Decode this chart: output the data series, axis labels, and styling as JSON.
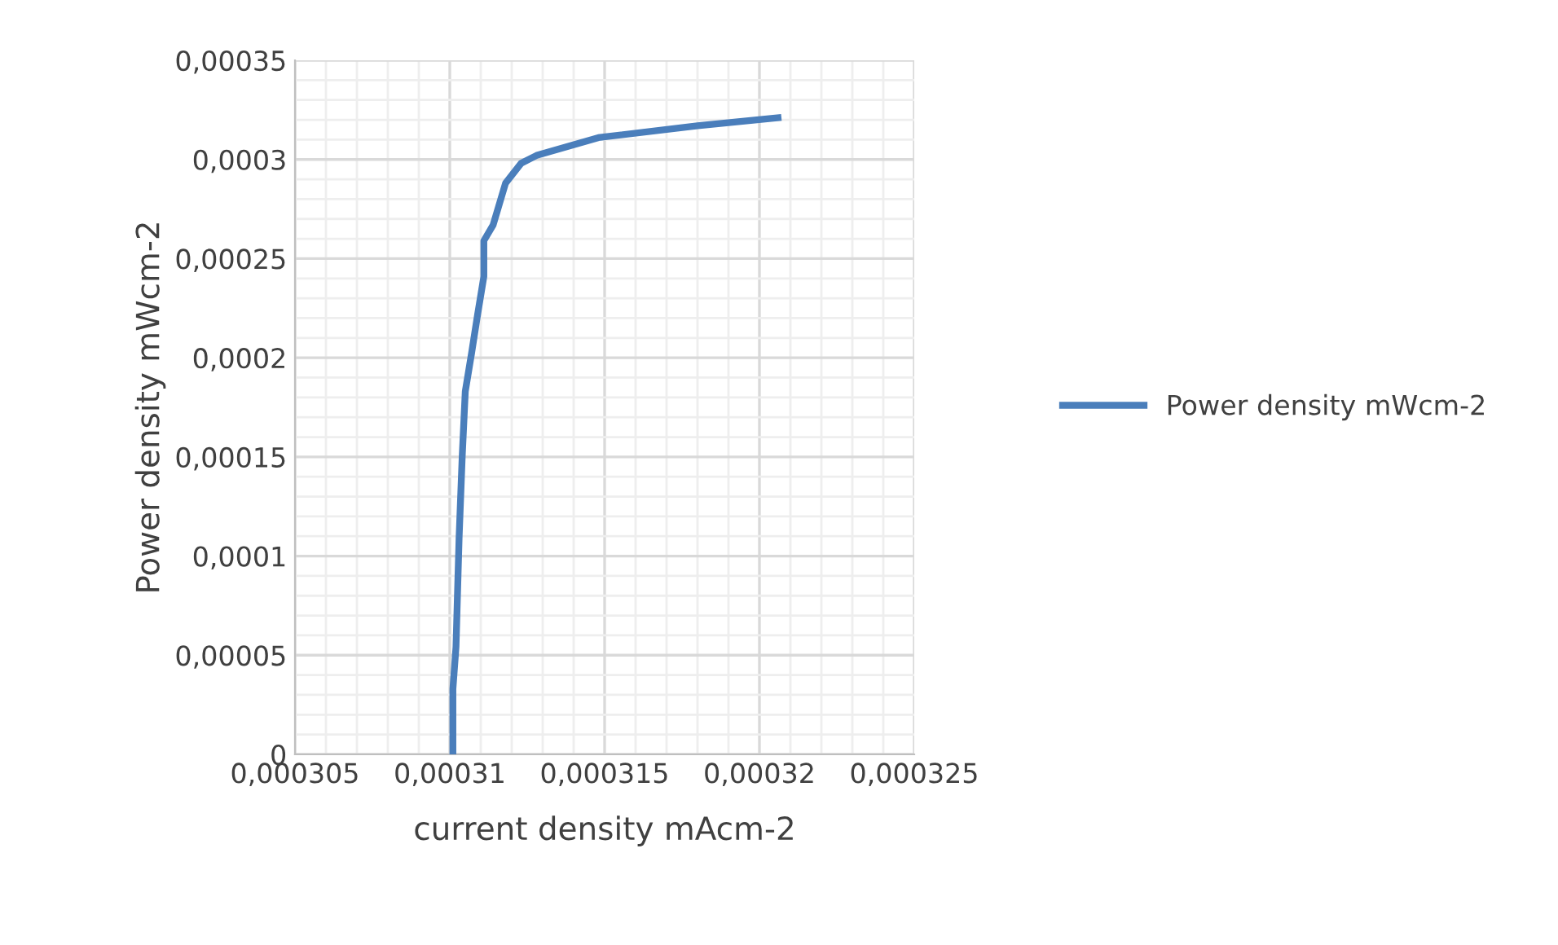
{
  "chart_data": {
    "type": "line",
    "xlabel": "current density mAcm-2",
    "ylabel": "Power density mWcm-2",
    "x": [
      0.0003101,
      0.0003101,
      0.0003102,
      0.0003103,
      0.0003104,
      0.0003105,
      0.0003107,
      0.0003109,
      0.0003111,
      0.0003111,
      0.0003114,
      0.0003118,
      0.0003123,
      0.0003128,
      0.0003148,
      0.000318,
      0.0003206
    ],
    "series": [
      {
        "name": "Power density mWcm-2",
        "color": "#4a7ebb",
        "values": [
          0,
          3.29e-05,
          5.42e-05,
          0.000109,
          0.00015,
          0.000183,
          0.000202,
          0.000222,
          0.000241,
          0.000259,
          0.000267,
          0.000288,
          0.000298,
          0.000302,
          0.000311,
          0.000317,
          0.000321
        ]
      }
    ],
    "xlim": [
      0.000305,
      0.000325
    ],
    "xticks": [
      {
        "value": 0.000305,
        "label": "0,000305"
      },
      {
        "value": 0.00031,
        "label": "0,00031"
      },
      {
        "value": 0.000315,
        "label": "0,000315"
      },
      {
        "value": 0.00032,
        "label": "0,00032"
      },
      {
        "value": 0.000325,
        "label": "0,000325"
      }
    ],
    "ylim": [
      0,
      0.00035
    ],
    "yticks": [
      {
        "value": 0,
        "label": "0"
      },
      {
        "value": 5e-05,
        "label": "0,00005"
      },
      {
        "value": 0.0001,
        "label": "0,0001"
      },
      {
        "value": 0.00015,
        "label": "0,00015"
      },
      {
        "value": 0.0002,
        "label": "0,0002"
      },
      {
        "value": 0.00025,
        "label": "0,00025"
      },
      {
        "value": 0.0003,
        "label": "0,0003"
      },
      {
        "value": 0.00035,
        "label": "0,00035"
      }
    ],
    "grid": true,
    "legend": "right",
    "marker": "none",
    "line_style": "solid"
  }
}
